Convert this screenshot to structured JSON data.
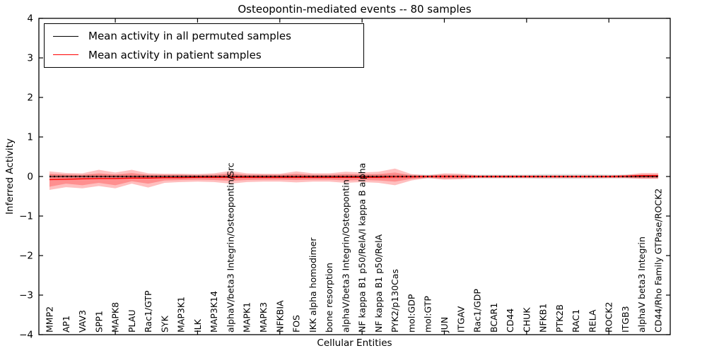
{
  "figure": {
    "title": "Osteopontin-mediated events -- 80 samples",
    "xlabel": "Cellular Entities",
    "ylabel": "Inferred Activity"
  },
  "legend": {
    "entries": [
      {
        "label": "Mean activity in all permuted samples",
        "color": "#000000"
      },
      {
        "label": "Mean activity in patient samples",
        "color": "#ff0000"
      }
    ]
  },
  "chart_data": {
    "type": "line",
    "title": "Osteopontin-mediated events -- 80 samples",
    "xlabel": "Cellular Entities",
    "ylabel": "Inferred Activity",
    "ylim": [
      -4,
      4
    ],
    "yticks": [
      4,
      3,
      2,
      1,
      0,
      -1,
      -2,
      -3,
      -4
    ],
    "ytick_labels": [
      "4",
      "3",
      "2",
      "1",
      "0",
      "−1",
      "−2",
      "−3",
      "−4"
    ],
    "xtick_indices": [
      4,
      9,
      14,
      19,
      24,
      29,
      34
    ],
    "grid": false,
    "legend_position": "upper left",
    "categories": [
      "MMP2",
      "AP1",
      "VAV3",
      "SPP1",
      "MAPK8",
      "PLAU",
      "Rac1/GTP",
      "SYK",
      "MAP3K1",
      "ILK",
      "MAP3K14",
      "alphaV/beta3 Integrin/Osteopontin/Src",
      "MAPK1",
      "MAPK3",
      "NFKBIA",
      "FOS",
      "IKK alpha homodimer",
      "bone resorption",
      "alphaV/beta3 Integrin/Osteopontin",
      "NF kappa B1 p50/RelA/I kappa B alpha",
      "NF kappa B1 p50/RelA",
      "PYK2/p130Cas",
      "mol:GDP",
      "mol:GTP",
      "JUN",
      "ITGAV",
      "Rac1/GDP",
      "BCAR1",
      "CD44",
      "CHUK",
      "NFKB1",
      "PTK2B",
      "RAC1",
      "RELA",
      "ROCK2",
      "ITGB3",
      "alphaV beta3 Integrin",
      "CD44/Rho Family GTPase/ROCK2"
    ],
    "series": [
      {
        "name": "Mean activity in all permuted samples",
        "color": "#000000",
        "style": "solid-with-dots",
        "values": [
          0,
          0,
          0,
          0,
          0,
          0,
          0,
          0,
          0,
          0,
          0,
          0,
          0,
          0,
          0,
          0,
          0,
          0,
          0,
          0,
          0,
          0,
          0,
          0,
          0,
          0,
          0,
          0,
          0,
          0,
          0,
          0,
          0,
          0,
          0,
          0,
          0,
          0
        ]
      },
      {
        "name": "Mean activity in patient samples",
        "color": "#ff0000",
        "style": "solid",
        "values": [
          -0.08,
          -0.07,
          -0.06,
          -0.05,
          -0.05,
          -0.04,
          -0.04,
          -0.03,
          -0.03,
          -0.02,
          -0.02,
          -0.02,
          -0.02,
          -0.02,
          -0.02,
          -0.02,
          -0.02,
          -0.02,
          -0.02,
          -0.02,
          -0.02,
          -0.01,
          -0.01,
          0,
          0,
          0,
          0,
          0,
          0,
          0,
          0,
          0,
          0,
          0,
          0,
          0.01,
          0.02,
          0.02
        ]
      }
    ],
    "bands": [
      {
        "name": "permuted-sample-range",
        "color": "#999999",
        "opacity": 0.3,
        "upper": [
          0.05,
          0.05,
          0.05,
          0.05,
          0.05,
          0.05,
          0.05,
          0.05,
          0.05,
          0.05,
          0.05,
          0.05,
          0.05,
          0.05,
          0.05,
          0.05,
          0.05,
          0.05,
          0.05,
          0.05,
          0.05,
          0.05,
          0.05,
          0.05,
          0.05,
          0.05,
          0.05,
          0.05,
          0.05,
          0.05,
          0.06,
          0.06,
          0.06,
          0.06,
          0.05,
          0.05,
          0.05,
          0.05
        ],
        "lower": [
          -0.05,
          -0.05,
          -0.05,
          -0.05,
          -0.05,
          -0.05,
          -0.05,
          -0.05,
          -0.05,
          -0.05,
          -0.05,
          -0.05,
          -0.05,
          -0.05,
          -0.05,
          -0.05,
          -0.05,
          -0.05,
          -0.05,
          -0.05,
          -0.05,
          -0.05,
          -0.05,
          -0.05,
          -0.05,
          -0.05,
          -0.05,
          -0.05,
          -0.05,
          -0.05,
          -0.06,
          -0.06,
          -0.06,
          -0.06,
          -0.05,
          -0.05,
          -0.05,
          -0.05
        ]
      },
      {
        "name": "patient-range-outer",
        "color": "#ff0000",
        "opacity": 0.25,
        "upper": [
          0.13,
          0.09,
          0.08,
          0.17,
          0.1,
          0.17,
          0.08,
          0.07,
          0.07,
          0.06,
          0.08,
          0.14,
          0.08,
          0.07,
          0.07,
          0.13,
          0.08,
          0.08,
          0.12,
          0.1,
          0.12,
          0.2,
          0.06,
          0.03,
          0.08,
          0.07,
          0.03,
          0.03,
          0.03,
          0.03,
          0.03,
          0.03,
          0.03,
          0.03,
          0.03,
          0.04,
          0.09,
          0.09
        ],
        "lower": [
          -0.34,
          -0.27,
          -0.3,
          -0.24,
          -0.3,
          -0.18,
          -0.28,
          -0.16,
          -0.14,
          -0.13,
          -0.14,
          -0.18,
          -0.14,
          -0.13,
          -0.13,
          -0.15,
          -0.13,
          -0.13,
          -0.16,
          -0.14,
          -0.16,
          -0.22,
          -0.1,
          -0.04,
          -0.08,
          -0.07,
          -0.04,
          -0.04,
          -0.04,
          -0.04,
          -0.04,
          -0.04,
          -0.04,
          -0.04,
          -0.04,
          -0.04,
          -0.06,
          -0.06
        ]
      },
      {
        "name": "patient-range-inner",
        "color": "#ff0000",
        "opacity": 0.25,
        "upper": [
          0.07,
          0.05,
          0.04,
          0.08,
          0.05,
          0.09,
          0.04,
          0.04,
          0.04,
          0.03,
          0.04,
          0.08,
          0.04,
          0.04,
          0.04,
          0.07,
          0.04,
          0.04,
          0.06,
          0.05,
          0.06,
          0.1,
          0.03,
          0.02,
          0.04,
          0.03,
          0.02,
          0.02,
          0.02,
          0.02,
          0.02,
          0.02,
          0.02,
          0.02,
          0.02,
          0.02,
          0.05,
          0.05
        ],
        "lower": [
          -0.26,
          -0.18,
          -0.22,
          -0.16,
          -0.22,
          -0.12,
          -0.18,
          -0.1,
          -0.09,
          -0.08,
          -0.09,
          -0.11,
          -0.09,
          -0.08,
          -0.08,
          -0.09,
          -0.08,
          -0.08,
          -0.1,
          -0.09,
          -0.1,
          -0.13,
          -0.06,
          -0.03,
          -0.05,
          -0.04,
          -0.03,
          -0.03,
          -0.03,
          -0.03,
          -0.03,
          -0.03,
          -0.03,
          -0.03,
          -0.03,
          -0.03,
          -0.04,
          -0.04
        ]
      }
    ]
  }
}
